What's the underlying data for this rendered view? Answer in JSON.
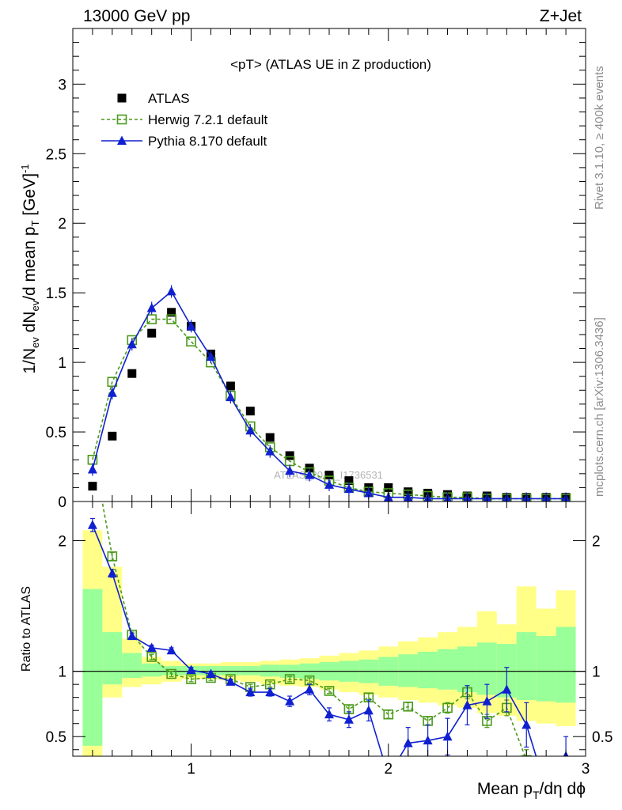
{
  "header": {
    "energy_label": "13000 GeV pp",
    "process_label": "Z+Jet",
    "title": "<pT> (ATLAS UE in Z production)",
    "watermark": "ATLAS_2019_I1736531",
    "side_label_top": "Rivet 3.1.10, ≥ 400k events",
    "side_label_bottom": "mcplots.cern.ch [arXiv:1306.3436]"
  },
  "chart_data": [
    {
      "type": "scatter",
      "ylabel": "1/N_ev dN_ev/d mean p_T [GeV]^-1",
      "xlim": [
        0.4,
        3.0
      ],
      "ylim": [
        0,
        3.4
      ],
      "yticks": [
        0,
        0.5,
        1,
        1.5,
        2,
        2.5,
        3
      ],
      "yticklabels": [
        "0",
        "0.5",
        "1",
        "1.5",
        "2",
        "2.5",
        "3"
      ],
      "legend_position": "top-left",
      "x": [
        0.5,
        0.6,
        0.7,
        0.8,
        0.9,
        1.0,
        1.1,
        1.2,
        1.3,
        1.4,
        1.5,
        1.6,
        1.7,
        1.8,
        1.9,
        2.0,
        2.1,
        2.2,
        2.3,
        2.4,
        2.5,
        2.6,
        2.7,
        2.8,
        2.9
      ],
      "series": [
        {
          "name": "ATLAS",
          "color": "#000000",
          "marker": "square",
          "values": [
            0.11,
            0.47,
            0.92,
            1.21,
            1.36,
            1.26,
            1.06,
            0.83,
            0.65,
            0.46,
            0.33,
            0.24,
            0.19,
            0.15,
            0.1,
            0.1,
            0.07,
            0.06,
            0.05,
            0.04,
            0.04,
            0.03,
            0.03,
            0.03,
            0.03
          ]
        },
        {
          "name": "Herwig 7.2.1 default",
          "color": "#4a9a1a",
          "marker": "open-square",
          "dash": "4,3",
          "values": [
            0.3,
            0.86,
            1.16,
            1.31,
            1.31,
            1.15,
            1.0,
            0.76,
            0.54,
            0.39,
            0.29,
            0.21,
            0.15,
            0.1,
            0.07,
            0.06,
            0.05,
            0.04,
            0.03,
            0.03,
            0.02,
            0.02,
            0.02,
            0.02,
            0.02
          ]
        },
        {
          "name": "Pythia 8.170 default",
          "color": "#1020d0",
          "marker": "triangle",
          "values": [
            0.23,
            0.78,
            1.13,
            1.39,
            1.51,
            1.26,
            1.04,
            0.75,
            0.51,
            0.36,
            0.22,
            0.19,
            0.12,
            0.09,
            0.06,
            0.03,
            0.03,
            0.02,
            0.02,
            0.02,
            0.02,
            0.02,
            0.02,
            0.02,
            0.02
          ]
        }
      ]
    },
    {
      "type": "line",
      "xlabel": "Mean p_T/dη dϕ",
      "ylabel": "Ratio to ATLAS",
      "xlim": [
        0.4,
        3.0
      ],
      "ylim": [
        0.35,
        2.3
      ],
      "xticks": [
        1,
        2,
        3
      ],
      "xticklabels": [
        "1",
        "2",
        "3"
      ],
      "yticks": [
        0.5,
        1,
        2
      ],
      "yticklabels": [
        "0.5",
        "1",
        "2"
      ],
      "reference_line": 1,
      "bands": {
        "bin_edges": [
          0.45,
          0.55,
          0.65,
          0.75,
          0.85,
          0.95,
          1.05,
          1.15,
          1.25,
          1.35,
          1.45,
          1.55,
          1.65,
          1.75,
          1.85,
          1.95,
          2.05,
          2.15,
          2.25,
          2.35,
          2.45,
          2.55,
          2.65,
          2.75,
          2.85,
          2.95
        ],
        "yellow_low": [
          0.35,
          0.8,
          0.88,
          0.9,
          0.92,
          0.94,
          0.94,
          0.93,
          0.92,
          0.9,
          0.89,
          0.88,
          0.86,
          0.84,
          0.82,
          0.8,
          0.78,
          0.76,
          0.74,
          0.72,
          0.68,
          0.66,
          0.62,
          0.6,
          0.58
        ],
        "yellow_high": [
          2.08,
          1.8,
          1.25,
          1.11,
          1.08,
          1.06,
          1.06,
          1.07,
          1.07,
          1.08,
          1.09,
          1.1,
          1.12,
          1.14,
          1.16,
          1.19,
          1.23,
          1.26,
          1.3,
          1.34,
          1.46,
          1.36,
          1.65,
          1.48,
          1.62
        ],
        "green_low": [
          0.43,
          0.9,
          0.95,
          0.96,
          0.97,
          0.97,
          0.97,
          0.97,
          0.97,
          0.96,
          0.95,
          0.94,
          0.93,
          0.92,
          0.91,
          0.89,
          0.88,
          0.87,
          0.86,
          0.84,
          0.82,
          0.8,
          0.78,
          0.77,
          0.76
        ],
        "green_high": [
          1.63,
          1.3,
          1.14,
          1.06,
          1.04,
          1.04,
          1.04,
          1.04,
          1.04,
          1.05,
          1.05,
          1.06,
          1.07,
          1.08,
          1.09,
          1.11,
          1.13,
          1.15,
          1.17,
          1.19,
          1.22,
          1.21,
          1.3,
          1.27,
          1.34
        ]
      },
      "x": [
        0.5,
        0.6,
        0.7,
        0.8,
        0.9,
        1.0,
        1.1,
        1.2,
        1.3,
        1.4,
        1.5,
        1.6,
        1.7,
        1.8,
        1.9,
        2.0,
        2.1,
        2.2,
        2.3,
        2.4,
        2.5,
        2.6,
        2.7,
        2.8,
        2.9
      ],
      "series": [
        {
          "name": "Herwig 7.2.1 default",
          "color": "#4a9a1a",
          "marker": "open-square",
          "dash": "4,3",
          "values": [
            2.7,
            1.88,
            1.28,
            1.11,
            0.98,
            0.94,
            0.95,
            0.94,
            0.88,
            0.9,
            0.94,
            0.93,
            0.85,
            0.71,
            0.8,
            0.67,
            0.73,
            0.62,
            0.72,
            0.84,
            0.62,
            0.72,
            0.32,
            null,
            null
          ],
          "errors": [
            0.05,
            0.03,
            0.02,
            0.02,
            0.02,
            0.02,
            0.02,
            0.02,
            0.02,
            0.02,
            0.02,
            0.02,
            0.02,
            0.03,
            0.03,
            0.03,
            0.03,
            0.03,
            0.04,
            0.05,
            0.05,
            0.06,
            0.08,
            null,
            null
          ]
        },
        {
          "name": "Pythia 8.170 default",
          "color": "#1020d0",
          "marker": "triangle",
          "values": [
            2.12,
            1.75,
            1.27,
            1.18,
            1.16,
            1.01,
            0.98,
            0.92,
            0.84,
            0.84,
            0.77,
            0.86,
            0.67,
            0.63,
            0.7,
            0.2,
            0.45,
            0.47,
            0.5,
            0.74,
            0.77,
            0.86,
            0.59,
            0.1,
            0.35
          ],
          "errors": [
            0.05,
            0.03,
            0.02,
            0.02,
            0.02,
            0.02,
            0.02,
            0.02,
            0.03,
            0.03,
            0.04,
            0.04,
            0.05,
            0.06,
            0.08,
            0.1,
            0.12,
            0.12,
            0.14,
            0.15,
            0.13,
            0.17,
            0.17,
            0.2,
            0.15
          ]
        }
      ]
    }
  ]
}
